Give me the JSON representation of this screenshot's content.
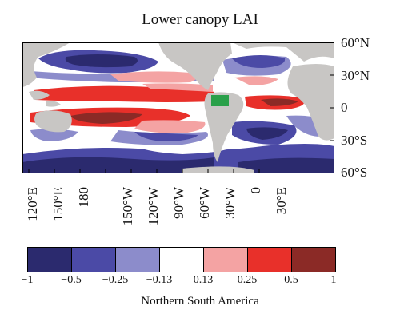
{
  "title": "Lower canopy LAI",
  "lat_labels": [
    "60°N",
    "30°N",
    "0",
    "30°S",
    "60°S"
  ],
  "lon_labels": [
    "120°E",
    "150°E",
    "180",
    "150°W",
    "120°W",
    "90°W",
    "60°W",
    "30°W",
    "0",
    "30°E"
  ],
  "colorbar": {
    "ticks": [
      "−1",
      "−0.5",
      "−0.25",
      "−0.13",
      "0.13",
      "0.25",
      "0.5",
      "1"
    ],
    "colors": [
      "#2b2a6e",
      "#4b4aa6",
      "#8c8ccb",
      "#ffffff",
      "#f4a3a3",
      "#e8302a",
      "#8b2a26"
    ]
  },
  "caption": "Northern South America",
  "colors": {
    "land": "#c8c6c4",
    "region_marker": "#2aa04a"
  }
}
